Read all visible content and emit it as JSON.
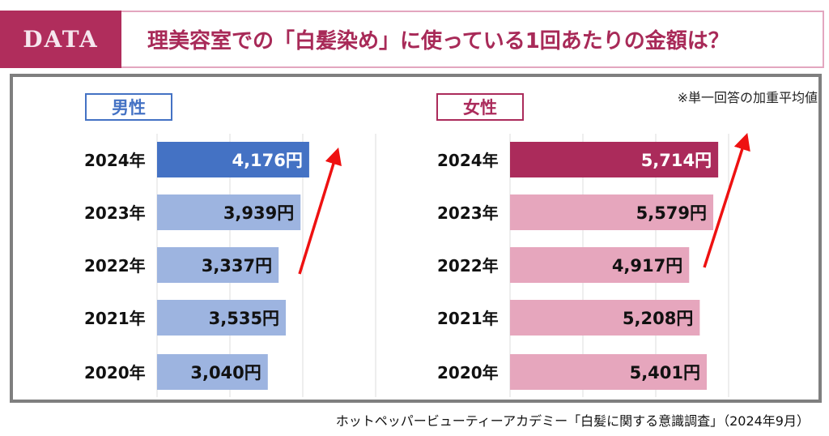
{
  "header": {
    "tag": "DATA",
    "title": "理美容室での「白髪染め」に使っている1回あたりの金額は？"
  },
  "note": "※単一回答の加重平均値",
  "source": "ホットペッパービューティーアカデミー「白髪に関する意識調査」（2024年9月）",
  "colors": {
    "male_highlight": "#4472c4",
    "male": "#9db4e0",
    "female_highlight": "#ab2b5b",
    "female": "#e6a6bd",
    "arrow": "#ee1111"
  },
  "chart_data": [
    {
      "type": "bar",
      "title": "男性",
      "categories": [
        "2024年",
        "2023年",
        "2022年",
        "2021年",
        "2020年"
      ],
      "values": [
        4176,
        3939,
        3337,
        3535,
        3040
      ],
      "value_labels": [
        "4,176円",
        "3,939円",
        "3,337円",
        "3,535円",
        "3,040円"
      ],
      "xlim": [
        0,
        6000
      ],
      "grid": true
    },
    {
      "type": "bar",
      "title": "女性",
      "categories": [
        "2024年",
        "2023年",
        "2022年",
        "2021年",
        "2020年"
      ],
      "values": [
        5714,
        5579,
        4917,
        5208,
        5401
      ],
      "value_labels": [
        "5,714円",
        "5,579円",
        "4,917円",
        "5,208円",
        "5,401円"
      ],
      "xlim": [
        0,
        6000
      ],
      "grid": true
    }
  ]
}
